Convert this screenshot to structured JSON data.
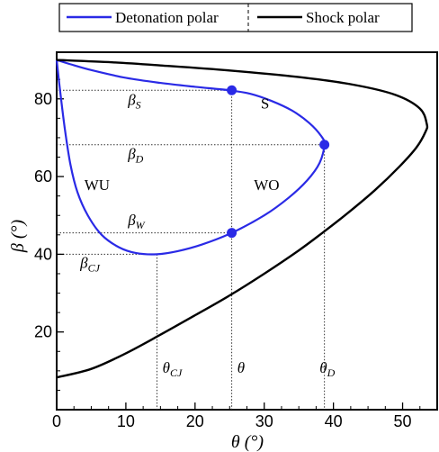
{
  "chart_data": {
    "type": "line",
    "xlabel": "θ (°)",
    "ylabel": "β (°)",
    "xlim": [
      0,
      55
    ],
    "ylim": [
      0,
      92
    ],
    "x_ticks": [
      0,
      10,
      20,
      30,
      40,
      50
    ],
    "y_ticks": [
      20,
      40,
      60,
      80
    ],
    "x_tick_labels": [
      "0",
      "10",
      "20",
      "30",
      "40",
      "50"
    ],
    "y_tick_labels": [
      "20",
      "40",
      "60",
      "80"
    ],
    "grid": false,
    "legend": {
      "position": "top",
      "entries": [
        {
          "label": "Detonation polar",
          "color": "#2a2ae6"
        },
        {
          "label": "Shock polar",
          "color": "#000000"
        }
      ]
    },
    "series": [
      {
        "name": "Detonation polar",
        "color": "#2a2ae6",
        "points": [
          [
            0,
            90
          ],
          [
            2,
            88.9
          ],
          [
            5,
            87.4
          ],
          [
            10,
            85.4
          ],
          [
            15,
            84.1
          ],
          [
            20,
            83.1
          ],
          [
            25,
            82.2
          ],
          [
            28,
            81.3
          ],
          [
            31,
            79.5
          ],
          [
            34,
            77
          ],
          [
            36.5,
            73.8
          ],
          [
            38.2,
            70.5
          ],
          [
            38.7,
            68.2
          ],
          [
            38,
            63.5
          ],
          [
            36.2,
            59
          ],
          [
            33.5,
            54.5
          ],
          [
            30,
            50
          ],
          [
            25.3,
            45.5
          ],
          [
            21,
            42.5
          ],
          [
            17.5,
            40.8
          ],
          [
            14.5,
            40
          ],
          [
            11.5,
            40.3
          ],
          [
            9,
            41.8
          ],
          [
            6.5,
            45
          ],
          [
            4.5,
            50
          ],
          [
            3,
            56
          ],
          [
            2,
            63
          ],
          [
            1.2,
            72
          ],
          [
            0.5,
            82
          ],
          [
            0,
            90
          ]
        ]
      },
      {
        "name": "Shock polar",
        "color": "#000000",
        "points": [
          [
            0,
            8.3
          ],
          [
            5,
            10.5
          ],
          [
            10,
            14.5
          ],
          [
            15,
            19.3
          ],
          [
            20,
            24.3
          ],
          [
            25,
            29.4
          ],
          [
            30,
            35
          ],
          [
            35,
            41
          ],
          [
            38.4,
            45.5
          ],
          [
            42,
            50.5
          ],
          [
            46,
            56.5
          ],
          [
            49.5,
            62.5
          ],
          [
            52,
            67.5
          ],
          [
            53.3,
            71.5
          ],
          [
            53.5,
            73.5
          ],
          [
            52.5,
            77.5
          ],
          [
            49,
            81
          ],
          [
            43,
            83.6
          ],
          [
            35,
            85.6
          ],
          [
            25,
            87.3
          ],
          [
            15,
            88.6
          ],
          [
            8,
            89.4
          ],
          [
            0,
            90
          ]
        ]
      }
    ],
    "markers": [
      {
        "x": 25.3,
        "y": 82.2
      },
      {
        "x": 38.7,
        "y": 68.2
      },
      {
        "x": 25.3,
        "y": 45.5
      }
    ],
    "guides": [
      {
        "type": "h",
        "y": 82.2,
        "x_to": 25.3
      },
      {
        "type": "h",
        "y": 68.2,
        "x_to": 38.7
      },
      {
        "type": "h",
        "y": 45.5,
        "x_to": 25.3
      },
      {
        "type": "h",
        "y": 40.0,
        "x_to": 14.5
      },
      {
        "type": "v",
        "x": 14.5,
        "y_from": 40.0
      },
      {
        "type": "v",
        "x": 25.3,
        "y_from": 82.2
      },
      {
        "type": "v",
        "x": 38.7,
        "y_from": 68.2
      }
    ],
    "annotations": [
      {
        "text": "β",
        "sub": "S",
        "x": 10.3,
        "y": 78.5
      },
      {
        "text": "S",
        "sub": "",
        "x": 29.5,
        "y": 77.5
      },
      {
        "text": "β",
        "sub": "D",
        "x": 10.3,
        "y": 64.5
      },
      {
        "text": "WU",
        "sub": "",
        "x": 4.0,
        "y": 56.5
      },
      {
        "text": "WO",
        "sub": "",
        "x": 28.5,
        "y": 56.5
      },
      {
        "text": "β",
        "sub": "W",
        "x": 10.3,
        "y": 47.5
      },
      {
        "text": "β",
        "sub": "CJ",
        "x": 3.4,
        "y": 36.5
      },
      {
        "text": "θ",
        "sub": "CJ",
        "x": 15.3,
        "y": 9.5
      },
      {
        "text": "θ",
        "sub": "",
        "x": 26.1,
        "y": 9.5
      },
      {
        "text": "θ",
        "sub": "D",
        "x": 38.0,
        "y": 9.5
      }
    ]
  }
}
